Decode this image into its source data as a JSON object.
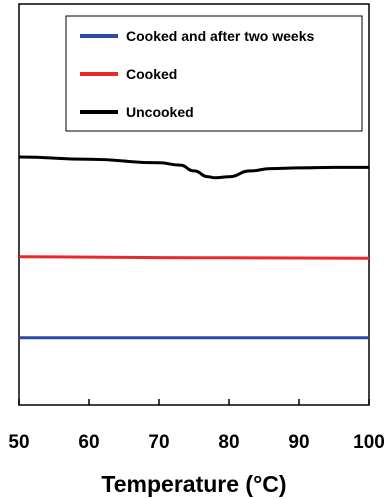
{
  "chart_data": {
    "type": "line",
    "title": "",
    "xlabel": "Temperature (°C)",
    "ylabel": "",
    "xlim": [
      50,
      100
    ],
    "x_ticks": [
      "50",
      "60",
      "70",
      "80",
      "90",
      "100"
    ],
    "y_ticks_shown": false,
    "grid": false,
    "legend_position": "top-right",
    "series": [
      {
        "name": "Cooked and after two weeks",
        "color": "#2e4aa5",
        "x": [
          50,
          60,
          70,
          80,
          90,
          100
        ],
        "y": [
          0.0,
          0.0,
          0.0,
          0.0,
          0.0,
          0.0
        ]
      },
      {
        "name": "Cooked",
        "color": "#e8282b",
        "x": [
          50,
          60,
          70,
          80,
          90,
          100
        ],
        "y": [
          3.5,
          3.48,
          3.46,
          3.45,
          3.44,
          3.43
        ]
      },
      {
        "name": "Uncooked",
        "color": "#000000",
        "x": [
          50,
          60,
          70,
          73,
          75,
          77,
          78,
          80,
          83,
          86,
          90,
          95,
          100
        ],
        "y": [
          7.8,
          7.7,
          7.55,
          7.45,
          7.2,
          6.95,
          6.9,
          6.95,
          7.2,
          7.3,
          7.33,
          7.35,
          7.35
        ]
      }
    ]
  }
}
